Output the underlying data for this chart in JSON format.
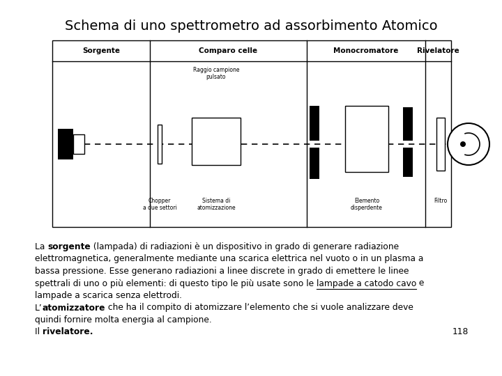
{
  "title": "Schema di uno spettrometro ad assorbimento Atomico",
  "bg_color": "#ffffff",
  "title_fontsize": 14,
  "section_labels": [
    "Sorgente",
    "Comparo celle",
    "Monocromatore",
    "Rivelatore"
  ],
  "page_number": "118",
  "text_lines": [
    [
      [
        "La ",
        false,
        false
      ],
      [
        "sorgente",
        true,
        false
      ],
      [
        " (lampada) di radiazioni è un dispositivo in grado di generare radiazione",
        false,
        false
      ]
    ],
    [
      [
        "elettromagnetica, generalmente mediante una scarica elettrica nel vuoto o in un plasma a",
        false,
        false
      ]
    ],
    [
      [
        "bassa pressione. Esse generano radiazioni a linee discrete in grado di emettere le linee",
        false,
        false
      ]
    ],
    [
      [
        "spettrali di uno o più elementi: di questo tipo le più usate sono le ",
        false,
        false
      ],
      [
        "lampade a catodo cavo",
        false,
        true
      ],
      [
        " e",
        false,
        false
      ]
    ],
    [
      [
        "lampade a scarica senza elettrodi.",
        false,
        false
      ]
    ],
    [
      [
        "L’",
        false,
        false
      ],
      [
        "atomizzatore",
        true,
        false
      ],
      [
        " che ha il compito di atomizzare l’elemento che si vuole analizzare deve",
        false,
        false
      ]
    ],
    [
      [
        "quindi fornire molta energia al campione.",
        false,
        false
      ]
    ],
    [
      [
        "Il ",
        false,
        false
      ],
      [
        "rivelatore.",
        true,
        false
      ]
    ]
  ]
}
